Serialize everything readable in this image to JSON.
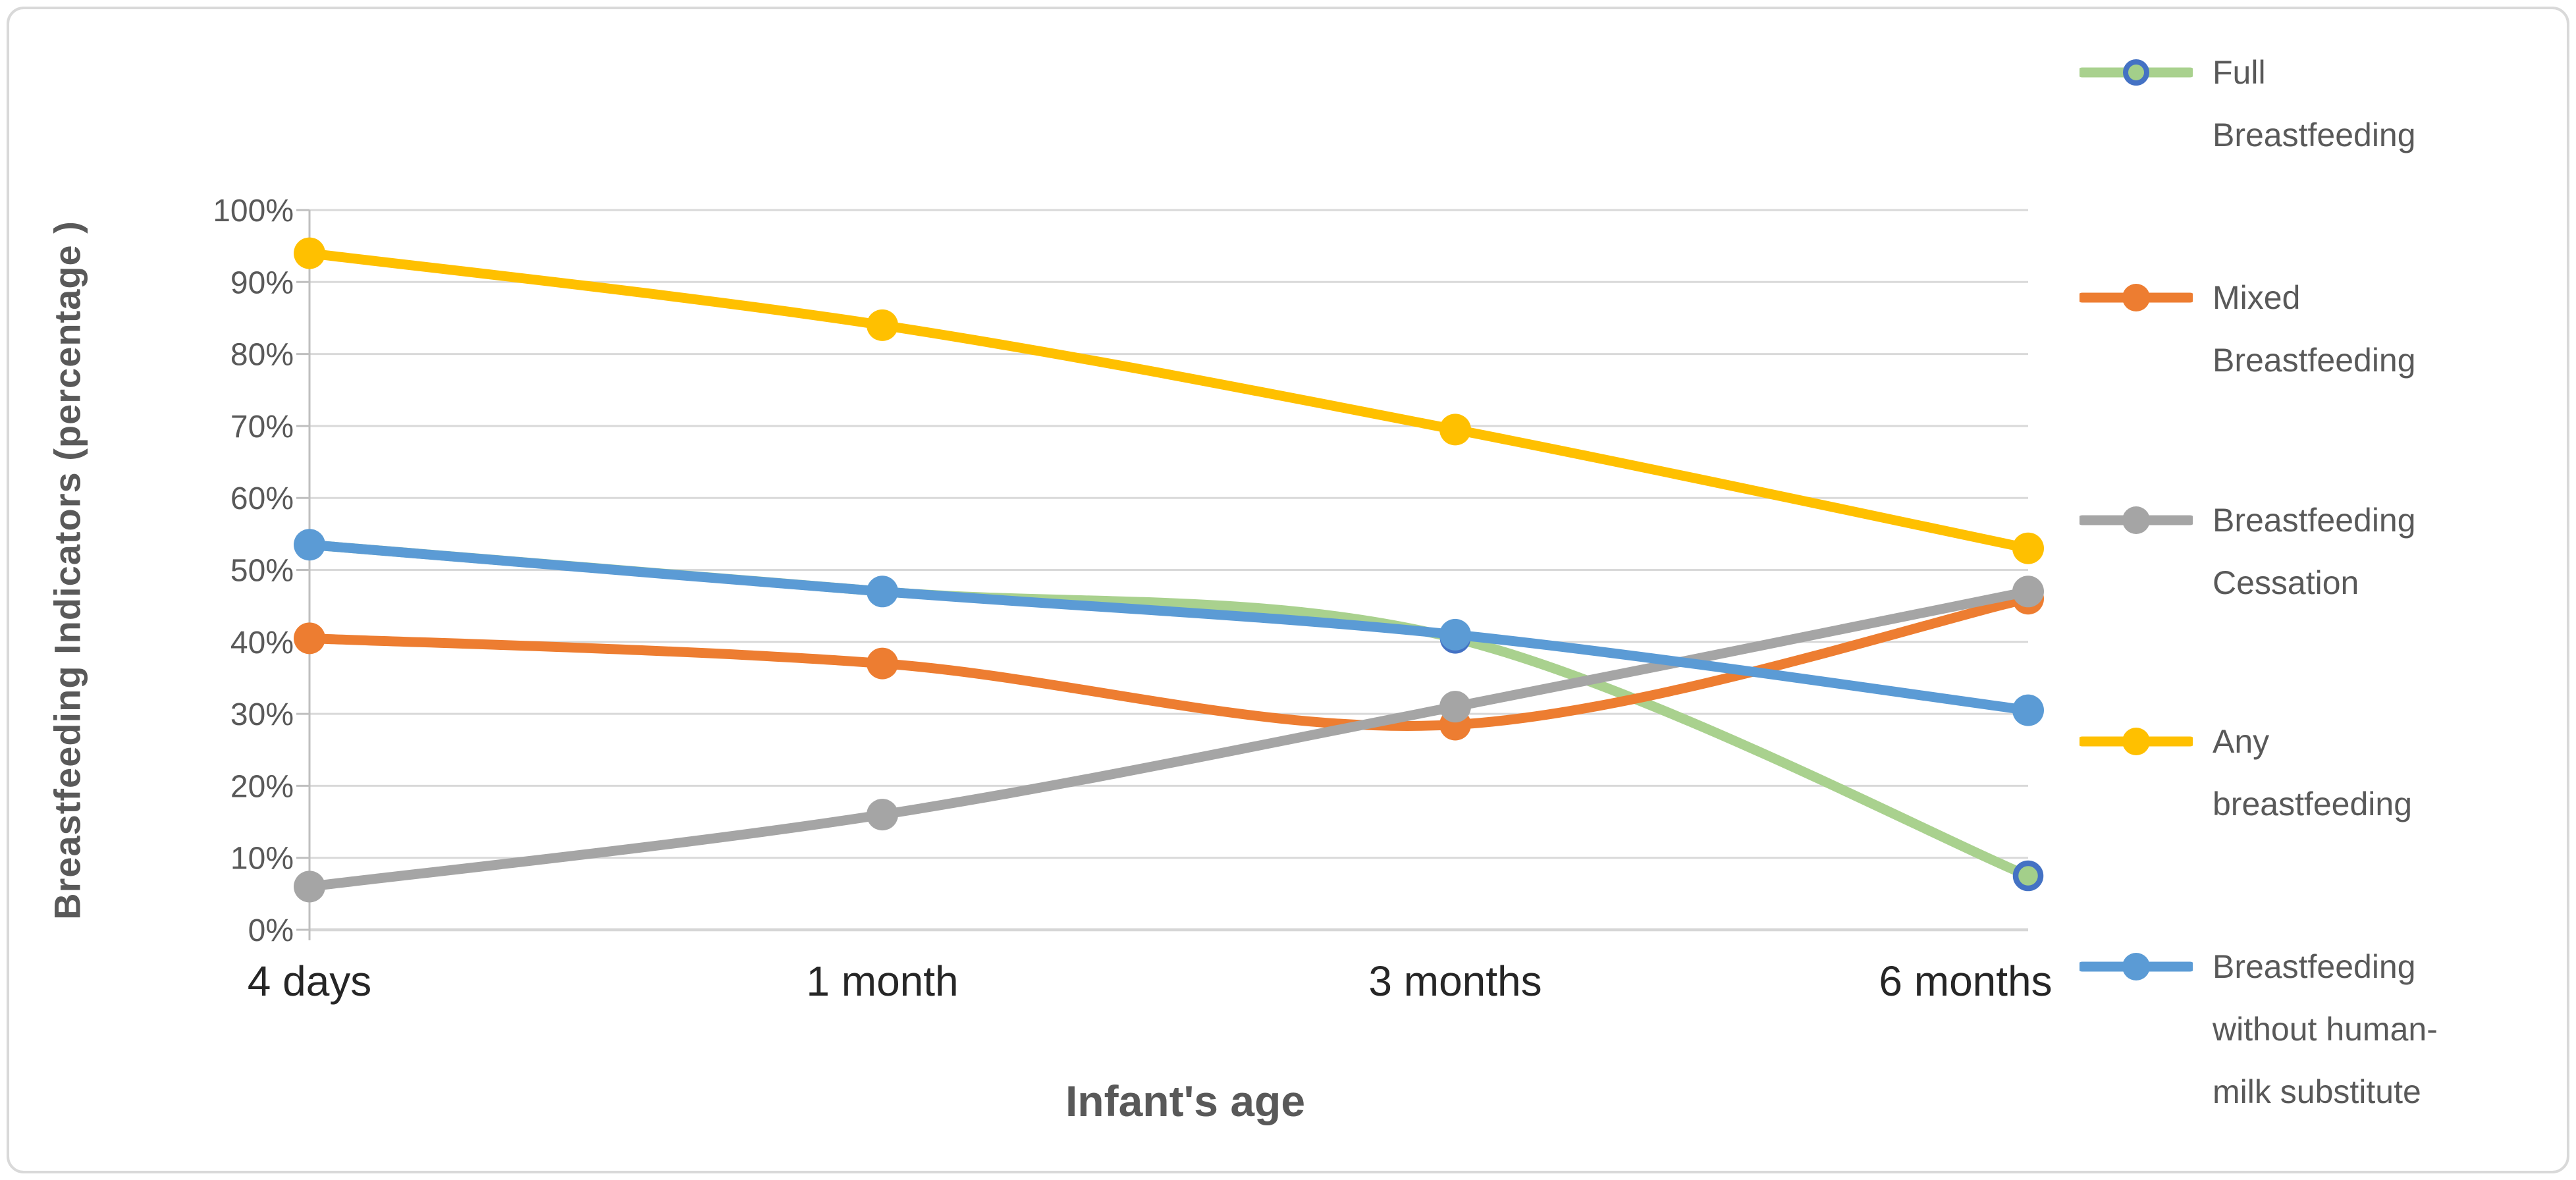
{
  "chart_data": {
    "type": "line",
    "title": "",
    "xlabel": "Infant's age",
    "ylabel": "Breastfeeding Indicators (percentage )",
    "categories": [
      "4 days",
      "1 month",
      "3 months",
      "6 months"
    ],
    "y_ticks": [
      "100%",
      "90%",
      "80%",
      "70%",
      "60%",
      "50%",
      "40%",
      "30%",
      "20%",
      "10%",
      "0%"
    ],
    "ylim": [
      0,
      100
    ],
    "grid": true,
    "legend_position": "right",
    "line_style": "smoothed",
    "series": [
      {
        "name": "Full Breastfeeding",
        "legend_lines": [
          "Full",
          "Breastfeeding"
        ],
        "values": [
          53.5,
          47,
          40.5,
          7.5
        ],
        "color": "#A9D18E",
        "marker": {
          "shape": "circle",
          "fill": "#A3CF8A",
          "stroke": "#4472C4"
        }
      },
      {
        "name": "Mixed Breastfeeding",
        "legend_lines": [
          "Mixed",
          "Breastfeeding"
        ],
        "values": [
          40.5,
          37,
          28.5,
          46
        ],
        "color": "#ED7D31",
        "marker": {
          "shape": "circle",
          "fill": "#ED7D31",
          "stroke": "none"
        }
      },
      {
        "name": "Breastfeeding Cessation",
        "legend_lines": [
          "Breastfeeding",
          "Cessation"
        ],
        "values": [
          6,
          16,
          31,
          47
        ],
        "color": "#A5A5A5",
        "marker": {
          "shape": "circle",
          "fill": "#A5A5A5",
          "stroke": "none"
        }
      },
      {
        "name": "Any breastfeeding",
        "legend_lines": [
          "Any",
          "breastfeeding"
        ],
        "values": [
          94,
          84,
          69.5,
          53
        ],
        "color": "#FFC000",
        "marker": {
          "shape": "circle",
          "fill": "#FFC000",
          "stroke": "none"
        }
      },
      {
        "name": "Breastfeeding without human-milk substitute",
        "legend_lines": [
          "Breastfeeding",
          "without human-",
          "milk substitute"
        ],
        "values": [
          53.5,
          47,
          41,
          30.5
        ],
        "color": "#5B9BD5",
        "marker": {
          "shape": "circle",
          "fill": "#5B9BD5",
          "stroke": "none"
        }
      }
    ]
  },
  "colors": {
    "background": "#FFFFFF",
    "chart_border": "#D9D9D9",
    "gridline": "#D9D9D9",
    "axis_line": "#BFBFBF",
    "baseline": "#D6D6D6",
    "y_tick_label": "#595959",
    "x_tick_label": "#262626",
    "axis_title": "#595959",
    "legend_text": "#595959"
  }
}
